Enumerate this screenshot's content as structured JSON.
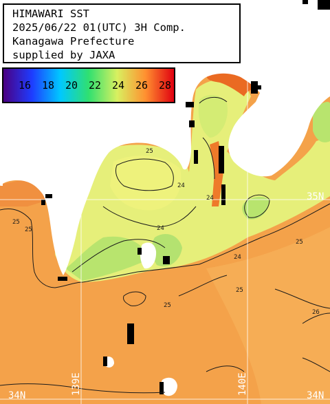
{
  "title": {
    "lines": [
      "HIMAWARI SST",
      "2025/06/22 01(UTC) 3H Comp.",
      "Kanagawa Prefecture",
      "supplied by JAXA"
    ]
  },
  "legend": {
    "labels": [
      "16",
      "18",
      "20",
      "22",
      "24",
      "26",
      "28"
    ],
    "colors": [
      "#4b0082",
      "#1e3cff",
      "#00c8ff",
      "#30e070",
      "#d8f060",
      "#ff9030",
      "#e00010"
    ]
  },
  "grid": {
    "lat_upper": "35N",
    "lat_lower": "34N",
    "lon_left": "139E",
    "lon_right": "140E"
  },
  "contours": [
    "25",
    "25",
    "25",
    "25",
    "24",
    "24",
    "24",
    "24",
    "25",
    "25",
    "26"
  ],
  "colors": {
    "land": "#ffffff",
    "sea_warm": "#f5a148",
    "sea_mid": "#f7b257",
    "sea_cool": "#e8f07c",
    "sea_cooler": "#b8e870",
    "coast_hot": "#e4621e",
    "cloud": "#000000"
  }
}
